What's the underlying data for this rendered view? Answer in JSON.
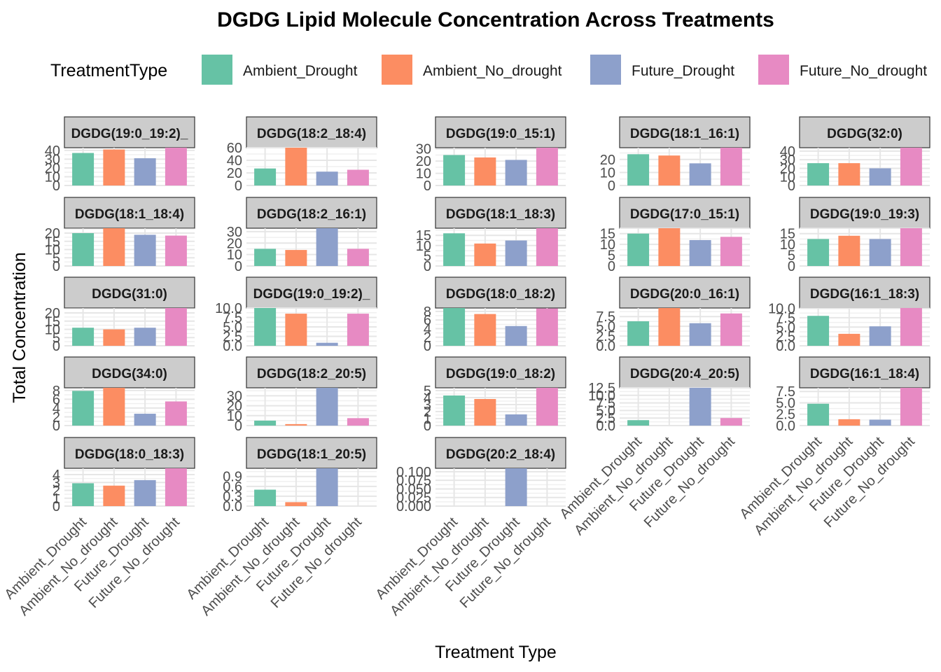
{
  "chart_data": {
    "type": "bar",
    "title": "DGDG  Lipid Molecule Concentration Across Treatments",
    "xlabel": "Treatment Type",
    "ylabel": "Total Concentration",
    "legend": {
      "title": "TreatmentType",
      "position": "top",
      "items": [
        "Ambient_Drought",
        "Ambient_No_drought",
        "Future_Drought",
        "Future_No_drought"
      ]
    },
    "categories": [
      "Ambient_Drought",
      "Ambient_No_drought",
      "Future_Drought",
      "Future_No_drought"
    ],
    "colors": {
      "Ambient_Drought": "#66c2a5",
      "Ambient_No_drought": "#fc8d62",
      "Future_Drought": "#8da0cb",
      "Future_No_drought": "#e78ac3"
    },
    "grid": true,
    "facets": [
      {
        "strip": "DGDG(19:0_19:2)_",
        "values": [
          37,
          41,
          31,
          43
        ],
        "ylim": [
          0,
          43
        ],
        "ticks": [
          "0",
          "10",
          "20",
          "30",
          "40"
        ],
        "tick_values": [
          0,
          10,
          20,
          30,
          40
        ]
      },
      {
        "strip": "DGDG(18:2_18:4)",
        "values": [
          27,
          60,
          22,
          25
        ],
        "ylim": [
          0,
          60
        ],
        "ticks": [
          "0",
          "20",
          "40",
          "60"
        ],
        "tick_values": [
          0,
          20,
          40,
          60
        ]
      },
      {
        "strip": "DGDG(19:0_15:1)",
        "values": [
          25,
          23,
          21,
          31
        ],
        "ylim": [
          0,
          31
        ],
        "ticks": [
          "0",
          "10",
          "20",
          "30"
        ],
        "tick_values": [
          0,
          10,
          20,
          30
        ]
      },
      {
        "strip": "DGDG(18:1_16:1)",
        "values": [
          24,
          23,
          17,
          29
        ],
        "ylim": [
          0,
          29
        ],
        "ticks": [
          "0",
          "10",
          "20",
          "30"
        ],
        "tick_values": [
          0,
          10,
          20,
          30
        ]
      },
      {
        "strip": "DGDG(32:0)",
        "values": [
          26,
          26,
          20,
          44
        ],
        "ylim": [
          0,
          44
        ],
        "ticks": [
          "0",
          "10",
          "20",
          "30",
          "40"
        ],
        "tick_values": [
          0,
          10,
          20,
          30,
          40
        ]
      },
      {
        "strip": "DGDG(18:1_18:4)",
        "values": [
          20,
          23,
          19,
          18.5
        ],
        "ylim": [
          0,
          23
        ],
        "ticks": [
          "0",
          "5",
          "10",
          "15",
          "20"
        ],
        "tick_values": [
          0,
          5,
          10,
          15,
          20
        ]
      },
      {
        "strip": "DGDG(18:2_16:1)",
        "values": [
          15,
          14,
          33,
          15
        ],
        "ylim": [
          0,
          33
        ],
        "ticks": [
          "0",
          "10",
          "20",
          "30"
        ],
        "tick_values": [
          0,
          10,
          20,
          30
        ]
      },
      {
        "strip": "DGDG(18:1_18:3)",
        "values": [
          16,
          11,
          12.5,
          18.5
        ],
        "ylim": [
          0,
          18.5
        ],
        "ticks": [
          "0",
          "5",
          "10",
          "15"
        ],
        "tick_values": [
          0,
          5,
          10,
          15
        ]
      },
      {
        "strip": "DGDG(17:0_15:1)",
        "values": [
          15,
          17.5,
          12,
          13.5
        ],
        "ylim": [
          0,
          17.5
        ],
        "ticks": [
          "0",
          "5",
          "10",
          "15"
        ],
        "tick_values": [
          0,
          5,
          10,
          15
        ]
      },
      {
        "strip": "DGDG(19:0_19:3)",
        "values": [
          12.5,
          14,
          12.5,
          17.5
        ],
        "ylim": [
          0,
          17.5
        ],
        "ticks": [
          "0",
          "5",
          "10",
          "15"
        ],
        "tick_values": [
          0,
          5,
          10,
          15
        ]
      },
      {
        "strip": "DGDG(31:0)",
        "values": [
          11,
          10,
          11,
          23
        ],
        "ylim": [
          0,
          23
        ],
        "ticks": [
          "0",
          "5",
          "10",
          "15",
          "20"
        ],
        "tick_values": [
          0,
          5,
          10,
          15,
          20
        ]
      },
      {
        "strip": "DGDG(19:0_19:2)_",
        "values": [
          10,
          8.5,
          0.8,
          8.5
        ],
        "ylim": [
          0,
          10
        ],
        "ticks": [
          "0.0",
          "2.5",
          "5.0",
          "7.5",
          "10.0"
        ],
        "tick_values": [
          0,
          2.5,
          5,
          7.5,
          10
        ]
      },
      {
        "strip": "DGDG(18:0_18:2)",
        "values": [
          8.8,
          7.4,
          4.6,
          8.7
        ],
        "ylim": [
          0,
          8.8
        ],
        "ticks": [
          "0",
          "2",
          "4",
          "6",
          "8"
        ],
        "tick_values": [
          0,
          2,
          4,
          6,
          8
        ]
      },
      {
        "strip": "DGDG(20:0_16:1)",
        "values": [
          6.3,
          9.7,
          5.8,
          8.3
        ],
        "ylim": [
          0,
          9.7
        ],
        "ticks": [
          "0.0",
          "2.5",
          "5.0",
          "7.5"
        ],
        "tick_values": [
          0,
          2.5,
          5,
          7.5
        ]
      },
      {
        "strip": "DGDG(16:1_18:3)",
        "values": [
          8,
          3.2,
          5.2,
          10.1
        ],
        "ylim": [
          0,
          10.1
        ],
        "ticks": [
          "0.0",
          "2.5",
          "5.0",
          "7.5",
          "10.0"
        ],
        "tick_values": [
          0,
          2.5,
          5,
          7.5,
          10
        ]
      },
      {
        "strip": "DGDG(34:0)",
        "values": [
          7.9,
          8.6,
          2.7,
          5.5
        ],
        "ylim": [
          0,
          8.6
        ],
        "ticks": [
          "0",
          "2",
          "4",
          "6",
          "8"
        ],
        "tick_values": [
          0,
          2,
          4,
          6,
          8
        ]
      },
      {
        "strip": "DGDG(18:2_20:5)",
        "values": [
          5,
          1.5,
          38,
          7.5
        ],
        "ylim": [
          0,
          38
        ],
        "ticks": [
          "0",
          "10",
          "20",
          "30"
        ],
        "tick_values": [
          0,
          10,
          20,
          30
        ]
      },
      {
        "strip": "DGDG(19:0_18:2)",
        "values": [
          4.3,
          3.8,
          1.6,
          5.4
        ],
        "ylim": [
          0,
          5.4
        ],
        "ticks": [
          "0",
          "1",
          "2",
          "3",
          "4",
          "5"
        ],
        "tick_values": [
          0,
          1,
          2,
          3,
          4,
          5
        ]
      },
      {
        "strip": "DGDG(20:4_20:5)",
        "values": [
          1.8,
          0,
          12.5,
          2.5
        ],
        "ylim": [
          0,
          12.5
        ],
        "ticks": [
          "0.0",
          "2.5",
          "5.0",
          "7.5",
          "10.0",
          "12.5"
        ],
        "tick_values": [
          0,
          2.5,
          5,
          7.5,
          10,
          12.5
        ]
      },
      {
        "strip": "DGDG(16:1_18:4)",
        "values": [
          4.8,
          1.4,
          1.3,
          8.3
        ],
        "ylim": [
          0,
          8.3
        ],
        "ticks": [
          "0.0",
          "2.5",
          "5.0",
          "7.5"
        ],
        "tick_values": [
          0,
          2.5,
          5,
          7.5
        ]
      },
      {
        "strip": "DGDG(18:0_18:3)",
        "values": [
          2.9,
          2.6,
          3.3,
          4.8
        ],
        "ylim": [
          0,
          4.8
        ],
        "ticks": [
          "0",
          "1",
          "2",
          "3",
          "4"
        ],
        "tick_values": [
          0,
          1,
          2,
          3,
          4
        ]
      },
      {
        "strip": "DGDG(18:1_20:5)",
        "values": [
          0.5,
          0.12,
          1.15,
          0
        ],
        "ylim": [
          0,
          1.15
        ],
        "ticks": [
          "0.0",
          "0.3",
          "0.6",
          "0.9",
          "1.2"
        ],
        "tick_values": [
          0,
          0.3,
          0.6,
          0.9,
          1.2
        ]
      },
      {
        "strip": "DGDG(20:2_18:4)",
        "values": [
          0,
          0,
          0.11,
          0
        ],
        "ylim": [
          0,
          0.11
        ],
        "ticks": [
          "0.000",
          "0.025",
          "0.050",
          "0.075",
          "0.100"
        ],
        "tick_values": [
          0,
          0.025,
          0.05,
          0.075,
          0.1
        ]
      }
    ]
  }
}
